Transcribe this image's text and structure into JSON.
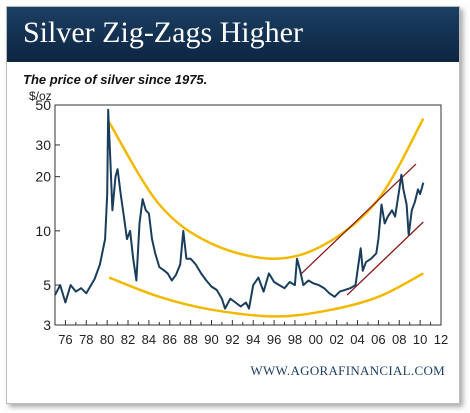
{
  "header": {
    "title": "Silver Zig-Zags Higher"
  },
  "subtitle": "The price of silver since 1975.",
  "unit_label": "$/oz",
  "footer": "WWW.AGORAFINANCIAL.COM",
  "colors": {
    "banner": "#163a5f",
    "line": "#1a3d5c",
    "curve": "#f2b900",
    "trend": "#8b1a1a"
  },
  "chart_data": {
    "type": "line",
    "title": "Silver Zig-Zags Higher",
    "subtitle": "The price of silver since 1975.",
    "ylabel": "$/oz",
    "yscale": "log",
    "ylim": [
      3,
      50
    ],
    "xlim": [
      1975,
      2012
    ],
    "x_ticks": [
      "76",
      "78",
      "80",
      "82",
      "84",
      "86",
      "88",
      "90",
      "92",
      "94",
      "96",
      "98",
      "00",
      "02",
      "04",
      "06",
      "08",
      "10",
      "12"
    ],
    "y_ticks": [
      3,
      5,
      10,
      20,
      30,
      50
    ],
    "grid": false,
    "series": [
      {
        "points": [
          [
            1975.0,
            4.4
          ],
          [
            1975.5,
            5.0
          ],
          [
            1976.0,
            4.0
          ],
          [
            1976.5,
            5.0
          ],
          [
            1977.0,
            4.6
          ],
          [
            1977.5,
            4.8
          ],
          [
            1978.0,
            4.5
          ],
          [
            1978.8,
            5.4
          ],
          [
            1979.3,
            6.5
          ],
          [
            1979.8,
            9.0
          ],
          [
            1980.0,
            16.0
          ],
          [
            1980.1,
            47.0
          ],
          [
            1980.3,
            25.0
          ],
          [
            1980.5,
            13.0
          ],
          [
            1980.8,
            20.0
          ],
          [
            1981.0,
            22.0
          ],
          [
            1981.3,
            16.0
          ],
          [
            1981.6,
            12.0
          ],
          [
            1981.9,
            9.0
          ],
          [
            1982.2,
            10.0
          ],
          [
            1982.5,
            7.0
          ],
          [
            1982.8,
            5.3
          ],
          [
            1983.1,
            11.0
          ],
          [
            1983.4,
            15.0
          ],
          [
            1983.7,
            13.0
          ],
          [
            1984.0,
            12.5
          ],
          [
            1984.3,
            9.0
          ],
          [
            1984.6,
            7.5
          ],
          [
            1985.0,
            6.3
          ],
          [
            1985.5,
            6.0
          ],
          [
            1985.8,
            5.8
          ],
          [
            1986.2,
            5.3
          ],
          [
            1986.6,
            5.7
          ],
          [
            1987.0,
            6.5
          ],
          [
            1987.3,
            10.0
          ],
          [
            1987.6,
            7.0
          ],
          [
            1988.0,
            7.0
          ],
          [
            1988.5,
            6.5
          ],
          [
            1989.0,
            5.8
          ],
          [
            1989.5,
            5.3
          ],
          [
            1990.0,
            4.9
          ],
          [
            1990.5,
            4.7
          ],
          [
            1991.0,
            4.2
          ],
          [
            1991.3,
            3.7
          ],
          [
            1991.8,
            4.2
          ],
          [
            1992.3,
            4.0
          ],
          [
            1992.8,
            3.8
          ],
          [
            1993.3,
            4.0
          ],
          [
            1993.6,
            3.7
          ],
          [
            1994.0,
            5.0
          ],
          [
            1994.5,
            5.5
          ],
          [
            1995.0,
            4.6
          ],
          [
            1995.5,
            5.8
          ],
          [
            1996.0,
            5.2
          ],
          [
            1996.5,
            5.0
          ],
          [
            1997.0,
            4.8
          ],
          [
            1997.5,
            5.2
          ],
          [
            1998.0,
            5.0
          ],
          [
            1998.2,
            7.0
          ],
          [
            1998.5,
            6.0
          ],
          [
            1998.8,
            5.0
          ],
          [
            1999.3,
            5.3
          ],
          [
            1999.8,
            5.1
          ],
          [
            2000.3,
            5.0
          ],
          [
            2000.8,
            4.8
          ],
          [
            2001.3,
            4.5
          ],
          [
            2001.8,
            4.3
          ],
          [
            2002.3,
            4.6
          ],
          [
            2002.8,
            4.7
          ],
          [
            2003.3,
            4.8
          ],
          [
            2003.8,
            5.0
          ],
          [
            2004.0,
            6.0
          ],
          [
            2004.3,
            8.0
          ],
          [
            2004.5,
            6.0
          ],
          [
            2004.8,
            6.7
          ],
          [
            2005.3,
            7.0
          ],
          [
            2005.8,
            7.5
          ],
          [
            2006.0,
            9.0
          ],
          [
            2006.3,
            14.0
          ],
          [
            2006.6,
            11.0
          ],
          [
            2006.9,
            12.0
          ],
          [
            2007.3,
            13.0
          ],
          [
            2007.6,
            12.0
          ],
          [
            2008.0,
            17.0
          ],
          [
            2008.2,
            20.5
          ],
          [
            2008.4,
            17.0
          ],
          [
            2008.7,
            14.0
          ],
          [
            2008.9,
            9.5
          ],
          [
            2009.2,
            13.0
          ],
          [
            2009.5,
            14.5
          ],
          [
            2009.8,
            17.0
          ],
          [
            2010.0,
            16.0
          ],
          [
            2010.3,
            18.5
          ]
        ]
      }
    ],
    "curves": [
      {
        "kind": "upper-u",
        "points": [
          [
            1980.2,
            40.0
          ],
          [
            1985.0,
            14.0
          ],
          [
            1990.0,
            8.5
          ],
          [
            1996.0,
            7.0
          ],
          [
            2001.0,
            8.5
          ],
          [
            2006.0,
            15.0
          ],
          [
            2010.3,
            42.0
          ]
        ]
      },
      {
        "kind": "lower-u",
        "points": [
          [
            1980.2,
            5.5
          ],
          [
            1985.0,
            4.3
          ],
          [
            1990.0,
            3.65
          ],
          [
            1996.0,
            3.35
          ],
          [
            2001.0,
            3.6
          ],
          [
            2006.0,
            4.3
          ],
          [
            2010.3,
            5.8
          ]
        ]
      }
    ],
    "trendlines": [
      {
        "from": [
          1998.5,
          5.7
        ],
        "to": [
          2009.6,
          23.5
        ]
      },
      {
        "from": [
          2003.0,
          4.4
        ],
        "to": [
          2010.3,
          11.2
        ]
      }
    ]
  }
}
